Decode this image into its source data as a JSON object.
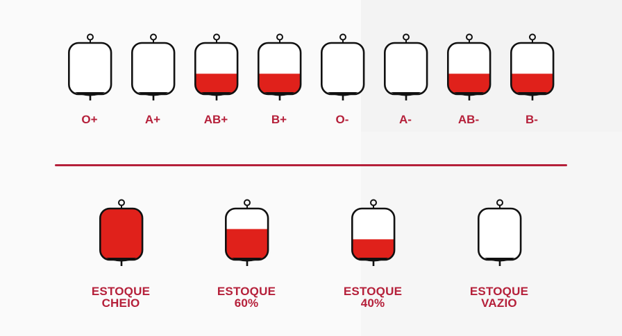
{
  "colors": {
    "accent": "#b5203a",
    "blood": "#e0211b",
    "outline": "#111111"
  },
  "blood_types": [
    {
      "label": "O+",
      "fill": 0
    },
    {
      "label": "A+",
      "fill": 0
    },
    {
      "label": "AB+",
      "fill": 0.4
    },
    {
      "label": "B+",
      "fill": 0.4
    },
    {
      "label": "O-",
      "fill": 0
    },
    {
      "label": "A-",
      "fill": 0
    },
    {
      "label": "AB-",
      "fill": 0.4
    },
    {
      "label": "B-",
      "fill": 0.4
    }
  ],
  "legend": [
    {
      "line1": "ESTOQUE",
      "line2": "CHEIO",
      "fill": 1.0
    },
    {
      "line1": "ESTOQUE",
      "line2": "60%",
      "fill": 0.6
    },
    {
      "line1": "ESTOQUE",
      "line2": "40%",
      "fill": 0.4
    },
    {
      "line1": "ESTOQUE",
      "line2": "VAZIO",
      "fill": 0
    }
  ]
}
